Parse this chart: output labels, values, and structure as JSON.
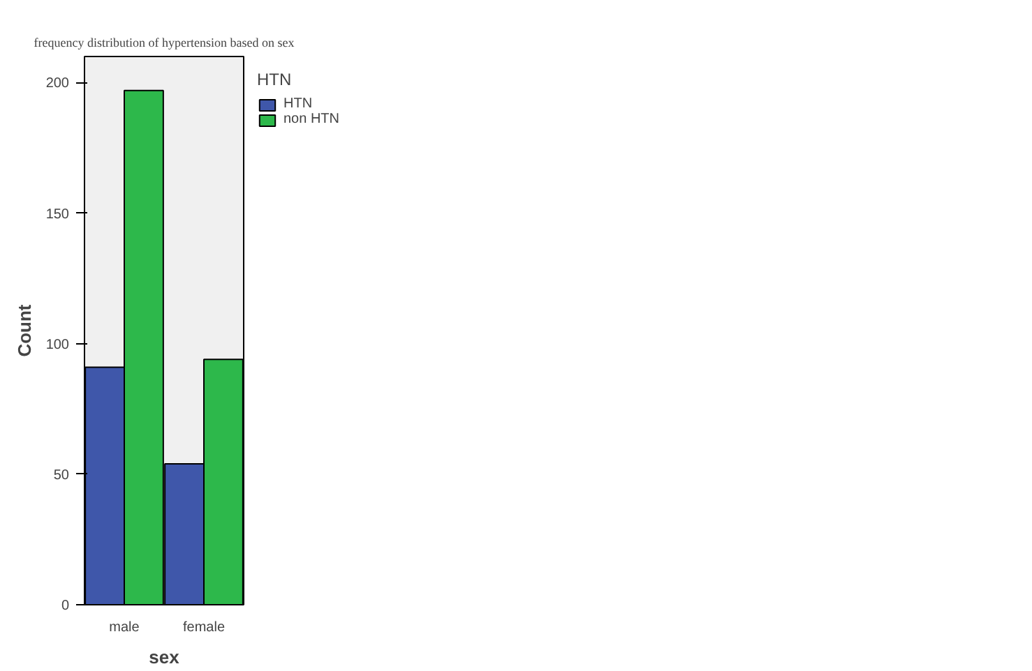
{
  "chart_data": {
    "type": "bar",
    "title": "frequency distribution of hypertension based on sex",
    "xlabel": "sex",
    "ylabel": "Count",
    "legend_title": "HTN",
    "categories": [
      "male",
      "female"
    ],
    "series": [
      {
        "name": "HTN",
        "color": "#3f57aa",
        "values": [
          91,
          54
        ]
      },
      {
        "name": "non HTN",
        "color": "#2db84b",
        "values": [
          197,
          94
        ]
      }
    ],
    "ylim": [
      0,
      210
    ],
    "yticks": [
      0,
      50,
      100,
      150,
      200
    ],
    "grid": false,
    "legend": "top right"
  }
}
